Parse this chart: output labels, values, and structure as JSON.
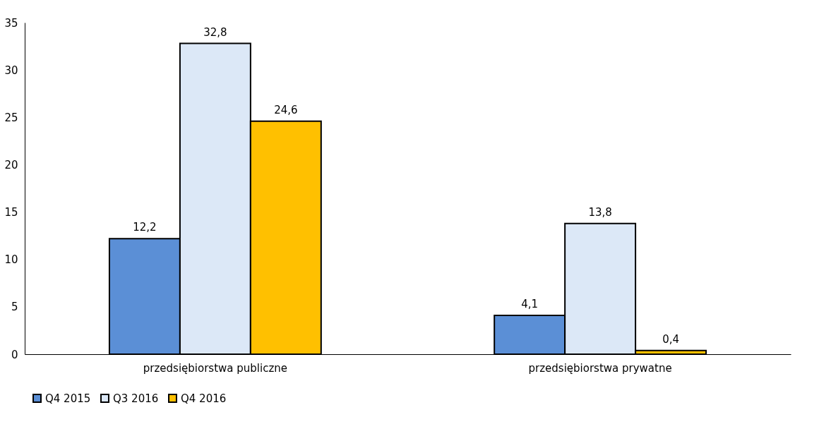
{
  "chart_data": {
    "type": "bar",
    "categories": [
      "przedsiębiorstwa publiczne",
      "przedsiębiorstwa prywatne"
    ],
    "series": [
      {
        "name": "Q4 2015",
        "color": "#5b8fd6",
        "values": [
          12.2,
          4.1
        ],
        "value_labels": [
          "12,2",
          "4,1"
        ]
      },
      {
        "name": "Q3 2016",
        "color": "#dce8f7",
        "values": [
          32.8,
          13.8
        ],
        "value_labels": [
          "32,8",
          "13,8"
        ]
      },
      {
        "name": "Q4 2016",
        "color": "#ffc000",
        "values": [
          24.6,
          0.4
        ],
        "value_labels": [
          "24,6",
          "0,4"
        ]
      }
    ],
    "ylim": [
      0,
      35
    ],
    "yticks": [
      0,
      5,
      10,
      15,
      20,
      25,
      30,
      35
    ],
    "grid": false,
    "legend": "bottom"
  }
}
